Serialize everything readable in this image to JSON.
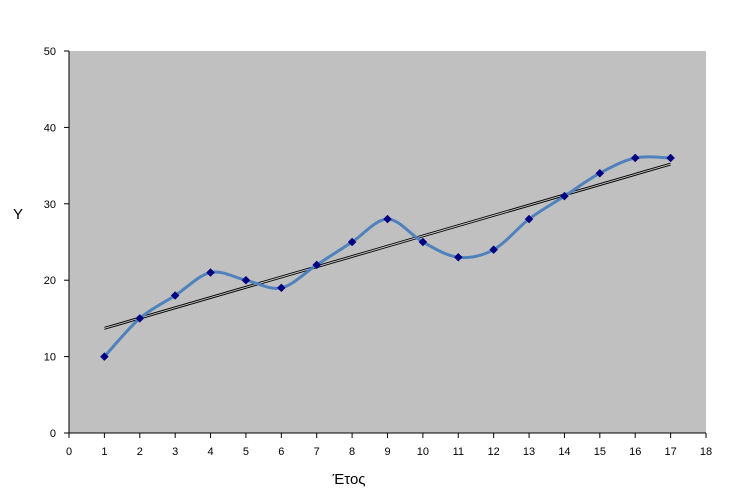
{
  "chart_data": {
    "type": "scatter",
    "title": "",
    "xlabel": "Έτος",
    "ylabel": "Y",
    "xlim": [
      0,
      18
    ],
    "ylim": [
      0,
      50
    ],
    "x_ticks": [
      0,
      1,
      2,
      3,
      4,
      5,
      6,
      7,
      8,
      9,
      10,
      11,
      12,
      13,
      14,
      15,
      16,
      17,
      18
    ],
    "y_ticks": [
      0,
      10,
      20,
      30,
      40,
      50
    ],
    "grid": false,
    "legend": "none",
    "series": [
      {
        "x": [
          1,
          2,
          3,
          4,
          5,
          6,
          7,
          8,
          9,
          10,
          11,
          12,
          13,
          14,
          15,
          16,
          17
        ],
        "values": [
          10,
          15,
          18,
          21,
          20,
          19,
          22,
          25,
          28,
          25,
          23,
          24,
          28,
          31,
          34,
          36,
          36
        ],
        "line": "smoothed",
        "marker": "diamond"
      }
    ],
    "trendline": {
      "type": "linear",
      "x": [
        1,
        17
      ],
      "values": [
        13.7,
        35.2
      ]
    },
    "colors": {
      "plot_area": "#c0c0c0",
      "series_line": "#4f81bd",
      "marker": "#000080",
      "trendline": "#000000"
    }
  }
}
